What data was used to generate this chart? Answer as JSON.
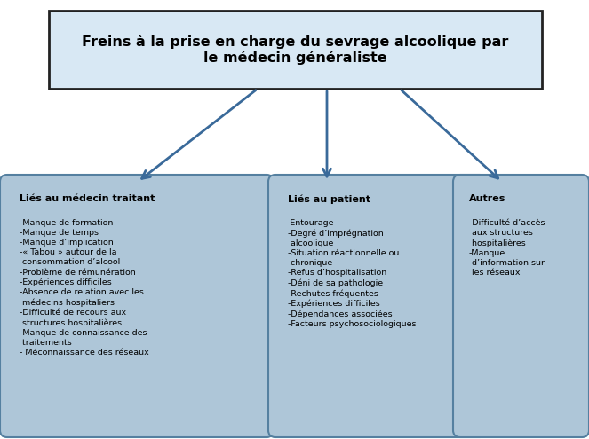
{
  "title": "Freins à la prise en charge du sevrage alcoolique par\nle médecin généraliste",
  "title_fontsize": 11.5,
  "box_bg": "#aec6d8",
  "box_border": "#5580a0",
  "title_bg_top": "#d8e8f4",
  "title_bg_bot": "#b0cce0",
  "arrow_color": "#3a6a9a",
  "col1_title": "Liés au médecin traitant",
  "col2_title": "Liés au patient",
  "col3_title": "Autres",
  "col1_items": "-Manque de formation\n-Manque de temps\n-Manque d’implication\n-« Tabou » autour de la\n consommation d’alcool\n-Problème de rémunération\n-Expériences difficiles\n-Absence de relation avec les\n médecins hospitaliers\n-Difficulté de recours aux\n structures hospitalières\n-Manque de connaissance des\n traitements\n- Méconnaissance des réseaux",
  "col2_items": "-Entourage\n-Degré d’imprégnation\n alcoolique\n-Situation réactionnelle ou\n chronique\n-Refus d’hospitalisation\n-Déni de sa pathologie\n-Rechutes fréquentes\n-Expériences difficiles\n-Dépendances associées\n-Facteurs psychosociologiques",
  "col3_items": "-Difficulté d’accès\n aux structures\n hospitalières\n-Manque\n d’information sur\n les réseaux",
  "fig_width": 6.63,
  "fig_height": 4.95,
  "dpi": 100
}
